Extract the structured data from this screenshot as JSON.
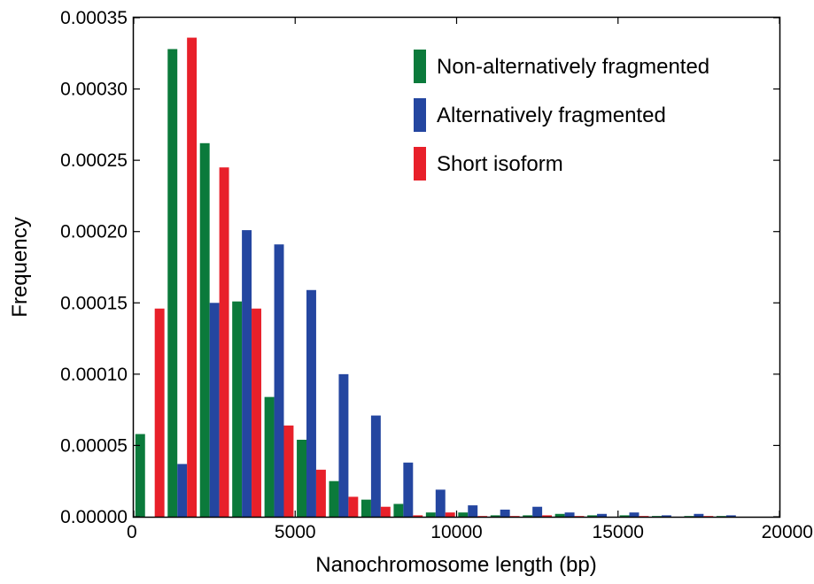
{
  "chart_data": {
    "type": "bar",
    "xlabel": "Nanochromosome length (bp)",
    "ylabel": "Frequency",
    "xlim": [
      0,
      20000
    ],
    "ylim": [
      0,
      0.00035
    ],
    "x_ticks": [
      "0",
      "5000",
      "10000",
      "15000",
      "20000"
    ],
    "y_ticks": [
      "0.00000",
      "0.00005",
      "0.00010",
      "0.00015",
      "0.00020",
      "0.00025",
      "0.00030",
      "0.00035"
    ],
    "grid": false,
    "legend_position": "top-right",
    "bin_starts": [
      0,
      1000,
      2000,
      3000,
      4000,
      5000,
      6000,
      7000,
      8000,
      9000,
      10000,
      11000,
      12000,
      13000,
      14000,
      15000,
      16000,
      17000,
      18000
    ],
    "series": [
      {
        "name": "Non-alternatively fragmented",
        "color": "#0b7a3b",
        "values": [
          5.8e-05,
          0.000328,
          0.000262,
          0.000151,
          8.4e-05,
          5.4e-05,
          2.5e-05,
          1.2e-05,
          9e-06,
          3e-06,
          3e-06,
          1e-06,
          1e-06,
          2e-06,
          1e-06,
          1e-06,
          5e-07,
          5e-07,
          5e-07
        ]
      },
      {
        "name": "Alternatively fragmented",
        "color": "#2446a0",
        "values": [
          0.0,
          3.7e-05,
          0.00015,
          0.000201,
          0.000191,
          0.000159,
          0.0001,
          7.1e-05,
          3.8e-05,
          1.9e-05,
          8e-06,
          5e-06,
          7e-06,
          3e-06,
          2e-06,
          3e-06,
          1e-06,
          2e-06,
          1e-06
        ]
      },
      {
        "name": "Short isoform",
        "color": "#e8202a",
        "values": [
          0.000146,
          0.000336,
          0.000245,
          0.000146,
          6.4e-05,
          3.3e-05,
          1.4e-05,
          7e-06,
          1e-06,
          3e-06,
          5e-07,
          5e-07,
          1e-06,
          5e-07,
          0.0,
          5e-07,
          0.0,
          5e-07,
          0.0
        ]
      }
    ]
  }
}
